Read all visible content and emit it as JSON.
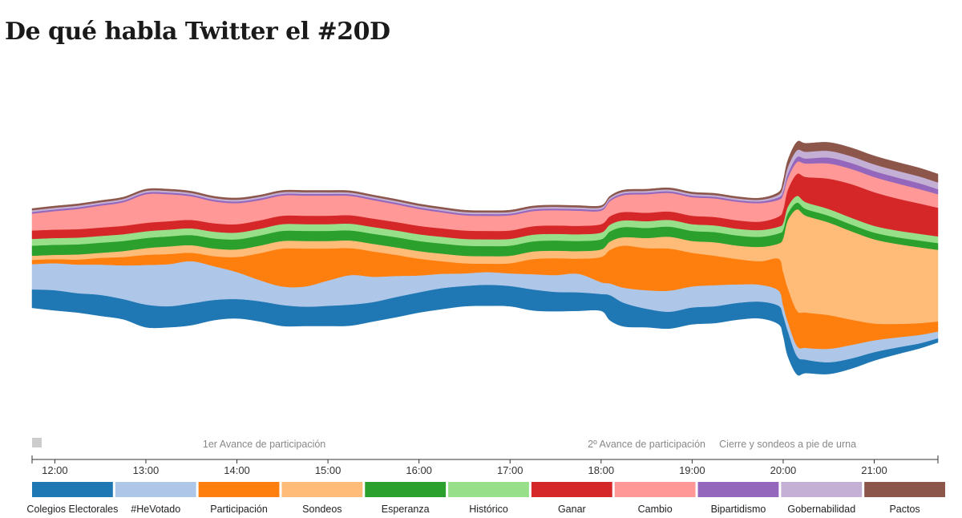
{
  "page": {
    "title": "De qué habla Twitter el #20D"
  },
  "chart_data": {
    "type": "area",
    "subtype": "streamgraph",
    "title": "De qué habla Twitter el #20D",
    "x_unit": "hours",
    "xlim": [
      11.75,
      21.7
    ],
    "x_ticks": [
      {
        "value": 12,
        "label": "12:00"
      },
      {
        "value": 13,
        "label": "13:00"
      },
      {
        "value": 14,
        "label": "14:00"
      },
      {
        "value": 15,
        "label": "15:00"
      },
      {
        "value": 16,
        "label": "16:00"
      },
      {
        "value": 17,
        "label": "17:00"
      },
      {
        "value": 18,
        "label": "18:00"
      },
      {
        "value": 19,
        "label": "19:00"
      },
      {
        "value": 20,
        "label": "20:00"
      },
      {
        "value": 21,
        "label": "21:00"
      }
    ],
    "annotations": [
      {
        "x": 14.3,
        "label": "1er Avance de participación"
      },
      {
        "x": 18.5,
        "label": "2º Avance de participación"
      },
      {
        "x": 20.05,
        "label": "Cierre y sondeos a pie de urna"
      }
    ],
    "y_scale": "relative tweet volume (arbitrary units)",
    "x": [
      11.75,
      12.0,
      12.25,
      12.5,
      12.75,
      13.0,
      13.25,
      13.5,
      13.75,
      14.0,
      14.25,
      14.5,
      14.75,
      15.0,
      15.25,
      15.5,
      15.75,
      16.0,
      16.25,
      16.5,
      16.75,
      17.0,
      17.25,
      17.5,
      17.75,
      18.0,
      18.1,
      18.25,
      18.5,
      18.75,
      19.0,
      19.25,
      19.5,
      19.75,
      19.95,
      20.0,
      20.05,
      20.15,
      20.25,
      20.5,
      20.75,
      21.0,
      21.25,
      21.5,
      21.7
    ],
    "series": [
      {
        "name": "Colegios Electorales",
        "color": "#1f77b4",
        "values": [
          22,
          24,
          23,
          25,
          24,
          27,
          25,
          26,
          24,
          23,
          24,
          25,
          23,
          24,
          25,
          23,
          24,
          24,
          25,
          24,
          25,
          24,
          25,
          23,
          22,
          20,
          30,
          28,
          22,
          20,
          20,
          20,
          20,
          20,
          22,
          24,
          30,
          22,
          16,
          14,
          12,
          10,
          8,
          6,
          5
        ]
      },
      {
        "name": "#HeVotado",
        "color": "#aec7e8",
        "values": [
          30,
          32,
          34,
          36,
          40,
          47,
          50,
          50,
          40,
          32,
          25,
          22,
          24,
          30,
          35,
          30,
          25,
          20,
          17,
          15,
          15,
          15,
          18,
          20,
          22,
          14,
          14,
          18,
          22,
          25,
          25,
          25,
          22,
          20,
          18,
          12,
          11,
          12,
          14,
          16,
          16,
          14,
          12,
          10,
          8
        ]
      },
      {
        "name": "Participación",
        "color": "#ff7f0e",
        "values": [
          5,
          5,
          6,
          8,
          10,
          12,
          12,
          10,
          12,
          18,
          32,
          45,
          45,
          38,
          32,
          30,
          25,
          20,
          15,
          12,
          10,
          12,
          18,
          20,
          18,
          30,
          40,
          50,
          50,
          50,
          40,
          35,
          30,
          28,
          38,
          40,
          40,
          42,
          42,
          40,
          30,
          20,
          16,
          14,
          12
        ]
      },
      {
        "name": "Sondeos",
        "color": "#ffbb78",
        "values": [
          5,
          5,
          6,
          6,
          7,
          8,
          9,
          9,
          9,
          9,
          9,
          9,
          9,
          9,
          9,
          9,
          9,
          9,
          9,
          9,
          9,
          9,
          9,
          9,
          9,
          9,
          10,
          10,
          12,
          14,
          14,
          16,
          16,
          17,
          18,
          40,
          80,
          120,
          115,
          110,
          105,
          100,
          95,
          90,
          85
        ]
      },
      {
        "name": "Esperanza",
        "color": "#2ca02c",
        "values": [
          12,
          12,
          12,
          12,
          12,
          12,
          12,
          12,
          12,
          12,
          12,
          12,
          12,
          12,
          12,
          12,
          12,
          12,
          12,
          12,
          12,
          12,
          12,
          12,
          12,
          12,
          12,
          12,
          12,
          12,
          12,
          12,
          12,
          12,
          12,
          10,
          8,
          8,
          8,
          8,
          8,
          8,
          8,
          8,
          8
        ]
      },
      {
        "name": "Histórico",
        "color": "#98df8a",
        "values": [
          8,
          8,
          8,
          8,
          8,
          8,
          8,
          8,
          8,
          8,
          8,
          8,
          8,
          8,
          8,
          8,
          8,
          8,
          8,
          8,
          8,
          8,
          8,
          8,
          8,
          8,
          8,
          8,
          8,
          8,
          8,
          8,
          8,
          8,
          8,
          8,
          8,
          8,
          8,
          8,
          8,
          8,
          8,
          8,
          8
        ]
      },
      {
        "name": "Ganar",
        "color": "#d62728",
        "values": [
          10,
          10,
          10,
          10,
          10,
          10,
          10,
          10,
          10,
          10,
          10,
          10,
          10,
          10,
          10,
          10,
          10,
          10,
          10,
          10,
          10,
          10,
          10,
          10,
          10,
          10,
          10,
          10,
          10,
          10,
          10,
          10,
          10,
          10,
          12,
          16,
          20,
          26,
          30,
          36,
          40,
          40,
          38,
          36,
          34
        ]
      },
      {
        "name": "Cambio",
        "color": "#ff9896",
        "values": [
          20,
          22,
          24,
          26,
          28,
          34,
          32,
          28,
          26,
          25,
          24,
          24,
          24,
          24,
          23,
          22,
          21,
          20,
          19,
          18,
          18,
          18,
          18,
          18,
          18,
          16,
          18,
          20,
          22,
          22,
          22,
          22,
          22,
          22,
          20,
          18,
          14,
          14,
          16,
          18,
          18,
          18,
          18,
          17,
          16
        ]
      },
      {
        "name": "Bipartidismo",
        "color": "#9467bd",
        "values": [
          2,
          2,
          2,
          2,
          2,
          2,
          2,
          2,
          2,
          2,
          2,
          2,
          2,
          2,
          2,
          2,
          2,
          2,
          2,
          2,
          2,
          2,
          2,
          2,
          2,
          2,
          2,
          2,
          2,
          2,
          2,
          2,
          2,
          2,
          3,
          4,
          5,
          6,
          6,
          7,
          7,
          7,
          7,
          7,
          6
        ]
      },
      {
        "name": "Gobernabilidad",
        "color": "#c5b0d5",
        "values": [
          2,
          2,
          2,
          2,
          2,
          2,
          2,
          2,
          2,
          2,
          2,
          2,
          2,
          2,
          2,
          2,
          2,
          2,
          2,
          2,
          2,
          2,
          2,
          2,
          2,
          2,
          2,
          2,
          2,
          2,
          2,
          2,
          2,
          2,
          3,
          6,
          8,
          8,
          8,
          8,
          8,
          8,
          8,
          8,
          8
        ]
      },
      {
        "name": "Pactos",
        "color": "#8c564b",
        "values": [
          2,
          2,
          2,
          2,
          2,
          2,
          2,
          2,
          2,
          2,
          2,
          2,
          2,
          2,
          2,
          2,
          2,
          2,
          2,
          2,
          2,
          2,
          2,
          2,
          2,
          2,
          2,
          2,
          2,
          2,
          2,
          2,
          2,
          2,
          3,
          6,
          8,
          10,
          10,
          10,
          10,
          10,
          10,
          10,
          10
        ]
      }
    ],
    "legend_position": "bottom",
    "grid": false
  }
}
